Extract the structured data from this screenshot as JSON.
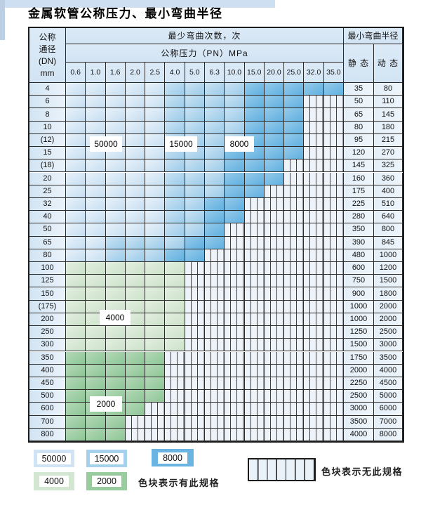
{
  "title": "金属软管公称压力、最小弯曲半径",
  "table": {
    "dn_header": [
      "公称",
      "通径",
      "(DN)",
      "mm"
    ],
    "bend_cycles_header": "最少弯曲次数，次",
    "pressure_header": "公称压力（PN）MPa",
    "radius_header": "最小弯曲半径",
    "static_label": "静 态",
    "dynamic_label": "动 态",
    "pressure_columns": [
      "0.6",
      "1.0",
      "1.6",
      "2.0",
      "2.5",
      "4.0",
      "5.0",
      "6.3",
      "10.0",
      "15.0",
      "20.0",
      "25.0",
      "32.0",
      "35.0"
    ],
    "zone_codes": {
      "A": "50000",
      "B": "15000",
      "C": "8000",
      "D": "4000",
      "E": "2000",
      "H": "no-spec"
    },
    "rows": [
      {
        "dn": "4",
        "static": "35",
        "dynamic": "80",
        "zones": "AAAAABBBBCCCCC"
      },
      {
        "dn": "6",
        "static": "50",
        "dynamic": "110",
        "zones": "AAAAABBBBCCCHH"
      },
      {
        "dn": "8",
        "static": "65",
        "dynamic": "145",
        "zones": "AAAAABBBBCCCHH"
      },
      {
        "dn": "10",
        "static": "80",
        "dynamic": "180",
        "zones": "AAAAABBBBCCCHH"
      },
      {
        "dn": "(12)",
        "static": "95",
        "dynamic": "215",
        "zones": "AAAAABBBBCCCHH"
      },
      {
        "dn": "15",
        "static": "120",
        "dynamic": "270",
        "zones": "AAAAABBBCCCCHH"
      },
      {
        "dn": "(18)",
        "static": "145",
        "dynamic": "325",
        "zones": "AAAAABBBCCCHHH"
      },
      {
        "dn": "20",
        "static": "160",
        "dynamic": "360",
        "zones": "AAAAABBBCCCHHH"
      },
      {
        "dn": "25",
        "static": "175",
        "dynamic": "400",
        "zones": "AAAAABBBCCHHHH"
      },
      {
        "dn": "32",
        "static": "225",
        "dynamic": "510",
        "zones": "AAAAABBCCHHHHH"
      },
      {
        "dn": "40",
        "static": "280",
        "dynamic": "640",
        "zones": "AAAAABBCCHHHHH"
      },
      {
        "dn": "50",
        "static": "350",
        "dynamic": "800",
        "zones": "AAAAABBCHHHHHH"
      },
      {
        "dn": "65",
        "static": "390",
        "dynamic": "845",
        "zones": "AABBBBCCHHHHHH"
      },
      {
        "dn": "80",
        "static": "480",
        "dynamic": "1000",
        "zones": "AABBBCCHHHHHHH"
      },
      {
        "dn": "100",
        "static": "600",
        "dynamic": "1200",
        "zones": "DDDDDDHHHHHHHH"
      },
      {
        "dn": "125",
        "static": "750",
        "dynamic": "1500",
        "zones": "DDDDDDHHHHHHHH"
      },
      {
        "dn": "150",
        "static": "900",
        "dynamic": "1800",
        "zones": "DDDDDDHHHHHHHH"
      },
      {
        "dn": "(175)",
        "static": "1000",
        "dynamic": "2000",
        "zones": "DDDDDDHHHHHHHH"
      },
      {
        "dn": "200",
        "static": "1000",
        "dynamic": "2000",
        "zones": "DDDDDDHHHHHHHH"
      },
      {
        "dn": "250",
        "static": "1250",
        "dynamic": "2500",
        "zones": "DDDDDDHHHHHHHH"
      },
      {
        "dn": "300",
        "static": "1500",
        "dynamic": "3000",
        "zones": "DDDDDDHHHHHHHH"
      },
      {
        "dn": "350",
        "static": "1750",
        "dynamic": "3500",
        "zones": "EEEEEHHHHHHHHH"
      },
      {
        "dn": "400",
        "static": "2000",
        "dynamic": "4000",
        "zones": "EEEEEHHHHHHHHH"
      },
      {
        "dn": "450",
        "static": "2250",
        "dynamic": "4500",
        "zones": "EEEEEHHHHHHHHH"
      },
      {
        "dn": "500",
        "static": "2500",
        "dynamic": "5000",
        "zones": "EEEEEHHHHHHHHH"
      },
      {
        "dn": "600",
        "static": "3000",
        "dynamic": "6000",
        "zones": "EEEEHHHHHHHHHH"
      },
      {
        "dn": "700",
        "static": "3500",
        "dynamic": "7000",
        "zones": "EEEHHHHHHHHHHH"
      },
      {
        "dn": "800",
        "static": "4000",
        "dynamic": "8000",
        "zones": "EEEHHHHHHHHHHH"
      }
    ]
  },
  "overlay_labels": [
    "50000",
    "15000",
    "8000",
    "4000",
    "2000"
  ],
  "legend": {
    "blocks": [
      {
        "label": "50000",
        "color": "#cfe3f4"
      },
      {
        "label": "15000",
        "color": "#a5d1ec"
      },
      {
        "label": "8000",
        "color": "#6ab4e1"
      },
      {
        "label": "4000",
        "color": "#d3e6d1"
      },
      {
        "label": "2000",
        "color": "#9acb9f"
      }
    ],
    "has_spec_note": "色块表示有此规格",
    "no_spec_note": "色块表示无此规格"
  },
  "colors": {
    "zone_50000": "#cfe3f4",
    "zone_15000": "#a5d1ec",
    "zone_8000": "#6ab4e1",
    "zone_4000": "#d3e6d1",
    "zone_2000": "#9acb9f",
    "no_spec_bg": "#eef3fa"
  }
}
